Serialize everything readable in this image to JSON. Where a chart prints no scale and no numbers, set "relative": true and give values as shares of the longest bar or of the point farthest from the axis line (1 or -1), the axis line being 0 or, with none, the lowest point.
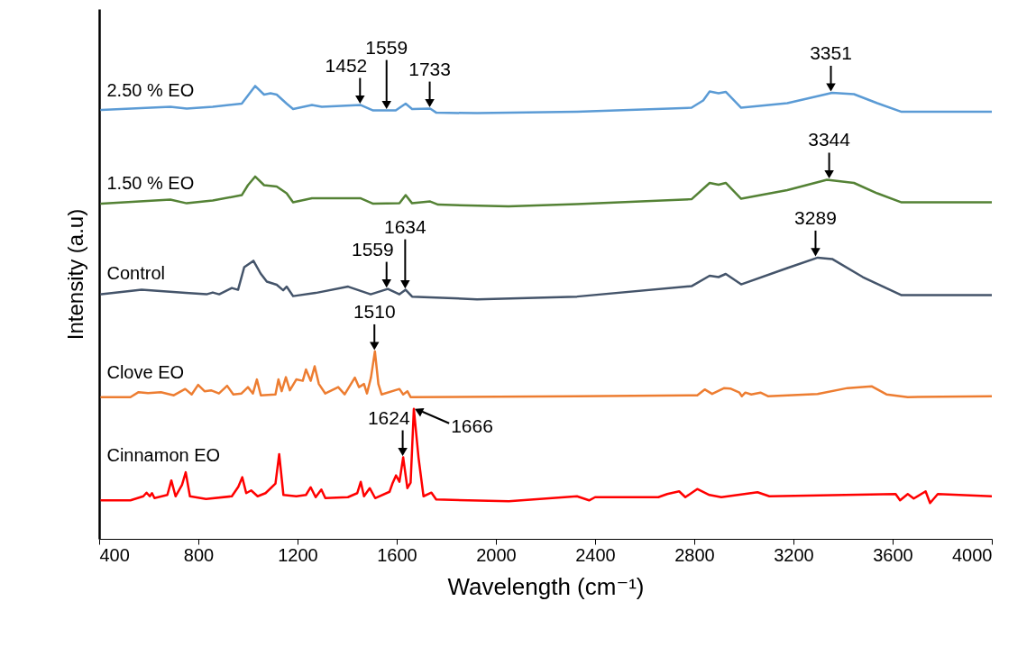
{
  "chart_data": {
    "type": "line",
    "xlabel": "Wavelength (cm⁻¹)",
    "ylabel": "Intensity (a.u)",
    "relative": true,
    "xlim": [
      400,
      4000
    ],
    "xticks": [
      400,
      800,
      1200,
      1600,
      2000,
      2400,
      2800,
      3200,
      3600,
      4000
    ],
    "series": [
      {
        "name": "2.50 % EO",
        "color": "#5b9bd5",
        "x": [
          409,
          687,
          753,
          858,
          975,
          1000,
          1029,
          1065,
          1091,
          1116,
          1156,
          1182,
          1258,
          1298,
          1455,
          1505,
          1596,
          1636,
          1662,
          1735,
          1760,
          1924,
          2327,
          2789,
          2836,
          2862,
          2898,
          2927,
          2989,
          3175,
          3356,
          3444,
          3538,
          3636,
          4000
        ],
        "values": [
          0.947,
          0.954,
          0.95,
          0.954,
          0.961,
          0.979,
          1.0,
          0.981,
          0.984,
          0.981,
          0.961,
          0.949,
          0.958,
          0.954,
          0.958,
          0.946,
          0.946,
          0.961,
          0.949,
          0.95,
          0.941,
          0.94,
          0.943,
          0.952,
          0.968,
          0.988,
          0.984,
          0.987,
          0.952,
          0.962,
          0.985,
          0.982,
          0.962,
          0.943,
          0.943
        ]
      },
      {
        "name": "1.50 % EO",
        "color": "#548235",
        "x": [
          409,
          687,
          753,
          858,
          975,
          1000,
          1029,
          1065,
          1116,
          1156,
          1182,
          1258,
          1455,
          1505,
          1611,
          1636,
          1662,
          1735,
          1767,
          2051,
          2327,
          2789,
          2862,
          2898,
          2927,
          2989,
          3175,
          3335,
          3444,
          3538,
          3636,
          4000
        ],
        "values": [
          0.74,
          0.749,
          0.741,
          0.747,
          0.759,
          0.781,
          0.8,
          0.781,
          0.778,
          0.763,
          0.743,
          0.752,
          0.752,
          0.74,
          0.741,
          0.759,
          0.741,
          0.745,
          0.738,
          0.734,
          0.739,
          0.75,
          0.786,
          0.782,
          0.786,
          0.751,
          0.77,
          0.793,
          0.786,
          0.763,
          0.743,
          0.743
        ]
      },
      {
        "name": "Control",
        "color": "#44546a",
        "x": [
          409,
          571,
          749,
          833,
          858,
          884,
          935,
          960,
          985,
          1022,
          1051,
          1076,
          1116,
          1142,
          1156,
          1182,
          1273,
          1404,
          1495,
          1564,
          1611,
          1636,
          1662,
          1924,
          2327,
          2789,
          2862,
          2898,
          2927,
          2989,
          3175,
          3298,
          3356,
          3480,
          3636,
          4000
        ],
        "values": [
          0.54,
          0.55,
          0.543,
          0.54,
          0.544,
          0.54,
          0.554,
          0.55,
          0.6,
          0.614,
          0.586,
          0.568,
          0.561,
          0.549,
          0.557,
          0.536,
          0.543,
          0.557,
          0.54,
          0.552,
          0.54,
          0.55,
          0.535,
          0.529,
          0.535,
          0.558,
          0.581,
          0.578,
          0.585,
          0.562,
          0.598,
          0.621,
          0.618,
          0.578,
          0.538,
          0.538
        ]
      },
      {
        "name": "Clove EO",
        "color": "#ed7d31",
        "x": [
          409,
          526,
          559,
          597,
          649,
          701,
          747,
          773,
          799,
          825,
          851,
          883,
          916,
          941,
          974,
          1000,
          1020,
          1036,
          1052,
          1111,
          1123,
          1136,
          1153,
          1169,
          1195,
          1221,
          1234,
          1253,
          1269,
          1286,
          1312,
          1364,
          1390,
          1431,
          1448,
          1468,
          1480,
          1496,
          1512,
          1526,
          1539,
          1611,
          1626,
          1643,
          1656,
          2327,
          2812,
          2842,
          2872,
          2921,
          2945,
          2982,
          2992,
          3006,
          3030,
          3067,
          3097,
          3297,
          3418,
          3515,
          3575,
          3661,
          4000
        ],
        "values": [
          0.313,
          0.313,
          0.324,
          0.322,
          0.324,
          0.317,
          0.331,
          0.319,
          0.34,
          0.326,
          0.328,
          0.321,
          0.338,
          0.319,
          0.321,
          0.335,
          0.321,
          0.352,
          0.317,
          0.319,
          0.352,
          0.326,
          0.357,
          0.328,
          0.352,
          0.349,
          0.374,
          0.349,
          0.381,
          0.342,
          0.321,
          0.335,
          0.319,
          0.356,
          0.335,
          0.342,
          0.321,
          0.356,
          0.414,
          0.342,
          0.319,
          0.331,
          0.319,
          0.326,
          0.313,
          0.315,
          0.317,
          0.33,
          0.32,
          0.333,
          0.332,
          0.323,
          0.315,
          0.323,
          0.319,
          0.323,
          0.315,
          0.32,
          0.333,
          0.337,
          0.319,
          0.313,
          0.315
        ]
      },
      {
        "name": "Cinnamon EO",
        "color": "#ff0000",
        "x": [
          409,
          526,
          578,
          591,
          604,
          613,
          623,
          675,
          691,
          708,
          734,
          749,
          766,
          831,
          935,
          961,
          977,
          993,
          1013,
          1039,
          1071,
          1111,
          1126,
          1143,
          1195,
          1234,
          1253,
          1273,
          1296,
          1312,
          1403,
          1441,
          1455,
          1468,
          1491,
          1513,
          1571,
          1584,
          1597,
          1611,
          1626,
          1643,
          1656,
          1669,
          1688,
          1708,
          1740,
          1759,
          2052,
          2327,
          2376,
          2400,
          2655,
          2691,
          2739,
          2764,
          2812,
          2861,
          2909,
          3055,
          3103,
          3612,
          3630,
          3661,
          3685,
          3733,
          3751,
          3782,
          4000
        ],
        "values": [
          0.085,
          0.085,
          0.094,
          0.102,
          0.094,
          0.101,
          0.09,
          0.097,
          0.129,
          0.094,
          0.119,
          0.147,
          0.094,
          0.088,
          0.094,
          0.115,
          0.136,
          0.101,
          0.107,
          0.094,
          0.101,
          0.122,
          0.187,
          0.097,
          0.094,
          0.097,
          0.114,
          0.092,
          0.109,
          0.09,
          0.092,
          0.101,
          0.126,
          0.094,
          0.112,
          0.09,
          0.104,
          0.124,
          0.14,
          0.126,
          0.18,
          0.112,
          0.124,
          0.287,
          0.179,
          0.094,
          0.102,
          0.087,
          0.083,
          0.094,
          0.085,
          0.092,
          0.092,
          0.099,
          0.105,
          0.092,
          0.11,
          0.097,
          0.092,
          0.103,
          0.094,
          0.099,
          0.085,
          0.099,
          0.089,
          0.105,
          0.079,
          0.099,
          0.094
        ]
      }
    ],
    "annotations": [
      {
        "text": "1452",
        "x": 1452,
        "y": 0.958
      },
      {
        "text": "1559",
        "x": 1559,
        "y": 0.946
      },
      {
        "text": "1733",
        "x": 1733,
        "y": 0.95
      },
      {
        "text": "3351",
        "x": 3351,
        "y": 0.985
      },
      {
        "text": "3344",
        "x": 3344,
        "y": 0.793
      },
      {
        "text": "1559",
        "x": 1559,
        "y": 0.552
      },
      {
        "text": "1634",
        "x": 1634,
        "y": 0.55
      },
      {
        "text": "3289",
        "x": 3289,
        "y": 0.621
      },
      {
        "text": "1510",
        "x": 1510,
        "y": 0.414
      },
      {
        "text": "1624",
        "x": 1624,
        "y": 0.18
      },
      {
        "text": "1666",
        "x": 1666,
        "y": 0.287
      }
    ]
  }
}
